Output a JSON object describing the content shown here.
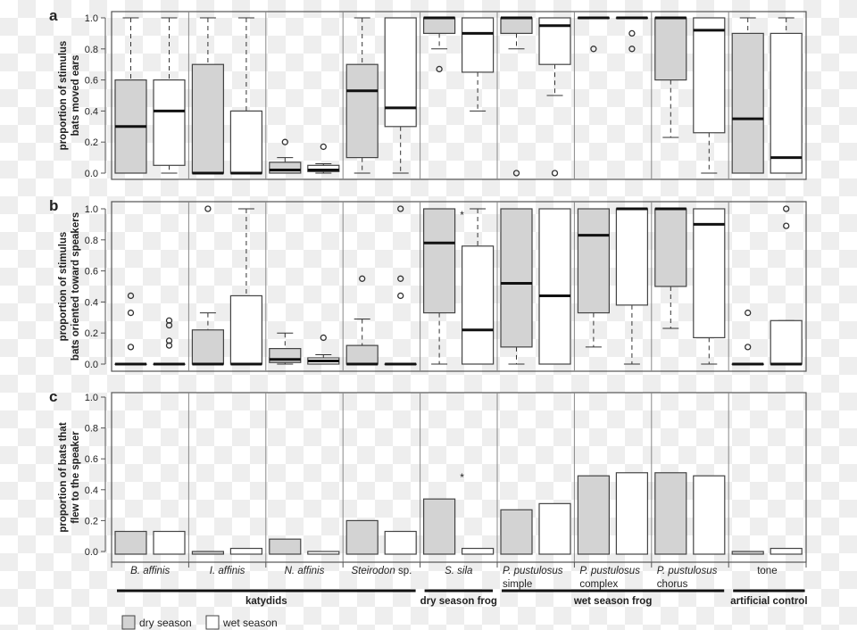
{
  "chart_data": [
    {
      "type": "box",
      "panel_label": "a",
      "ylabel": [
        "proportion of stimulus",
        "bats moved ears"
      ],
      "ylim": [
        0,
        1
      ],
      "yticks": [
        "0.0",
        "0.2",
        "0.4",
        "0.6",
        "0.8",
        "1.0"
      ],
      "groups": [
        {
          "dry": {
            "min": 0,
            "q1": 0,
            "med": 0.3,
            "q3": 0.6,
            "max": 1,
            "out": []
          },
          "wet": {
            "min": 0,
            "q1": 0.05,
            "med": 0.4,
            "q3": 0.6,
            "max": 1,
            "out": []
          }
        },
        {
          "dry": {
            "min": 0,
            "q1": 0,
            "med": 0,
            "q3": 0.7,
            "max": 1,
            "out": []
          },
          "wet": {
            "min": 0,
            "q1": 0,
            "med": 0,
            "q3": 0.4,
            "max": 1,
            "out": []
          }
        },
        {
          "dry": {
            "min": 0,
            "q1": 0,
            "med": 0.02,
            "q3": 0.07,
            "max": 0.1,
            "out": [
              0.2
            ]
          },
          "wet": {
            "min": 0,
            "q1": 0.01,
            "med": 0.02,
            "q3": 0.05,
            "max": 0.06,
            "out": [
              0.17
            ]
          }
        },
        {
          "dry": {
            "min": 0,
            "q1": 0.1,
            "med": 0.53,
            "q3": 0.7,
            "max": 1,
            "out": []
          },
          "wet": {
            "min": 0,
            "q1": 0.3,
            "med": 0.42,
            "q3": 1,
            "max": 1,
            "out": []
          }
        },
        {
          "dry": {
            "min": 0.8,
            "q1": 0.9,
            "med": 1,
            "q3": 1,
            "max": 1,
            "out": [
              0.67
            ]
          },
          "wet": {
            "min": 0.4,
            "q1": 0.65,
            "med": 0.9,
            "q3": 1,
            "max": 1,
            "out": []
          }
        },
        {
          "dry": {
            "min": 0.8,
            "q1": 0.9,
            "med": 1,
            "q3": 1,
            "max": 1,
            "out": [
              0
            ]
          },
          "wet": {
            "min": 0.5,
            "q1": 0.7,
            "med": 0.95,
            "q3": 1,
            "max": 1,
            "out": [
              0
            ]
          }
        },
        {
          "dry": {
            "min": 1,
            "q1": 1,
            "med": 1,
            "q3": 1,
            "max": 1,
            "out": [
              0.8
            ]
          },
          "wet": {
            "min": 1,
            "q1": 1,
            "med": 1,
            "q3": 1,
            "max": 1,
            "out": [
              0.9,
              0.8
            ]
          }
        },
        {
          "dry": {
            "min": 0.23,
            "q1": 0.6,
            "med": 1,
            "q3": 1,
            "max": 1,
            "out": []
          },
          "wet": {
            "min": 0,
            "q1": 0.26,
            "med": 0.92,
            "q3": 1,
            "max": 1,
            "out": []
          }
        },
        {
          "dry": {
            "min": 0,
            "q1": 0,
            "med": 0.35,
            "q3": 0.9,
            "max": 1,
            "out": []
          },
          "wet": {
            "min": 0,
            "q1": 0,
            "med": 0.1,
            "q3": 0.9,
            "max": 1,
            "out": []
          }
        }
      ],
      "annotations": []
    },
    {
      "type": "box",
      "panel_label": "b",
      "ylabel": [
        "proportion of stimulus",
        "bats oriented toward speakers"
      ],
      "ylim": [
        0,
        1
      ],
      "yticks": [
        "0.0",
        "0.2",
        "0.4",
        "0.6",
        "0.8",
        "1.0"
      ],
      "groups": [
        {
          "dry": {
            "min": 0,
            "q1": 0,
            "med": 0,
            "q3": 0,
            "max": 0,
            "out": [
              0.44,
              0.33,
              0.11
            ]
          },
          "wet": {
            "min": 0,
            "q1": 0,
            "med": 0,
            "q3": 0,
            "max": 0,
            "out": [
              0.28,
              0.25,
              0.15,
              0.12
            ]
          }
        },
        {
          "dry": {
            "min": 0,
            "q1": 0,
            "med": 0,
            "q3": 0.22,
            "max": 0.33,
            "out": [
              1
            ]
          },
          "wet": {
            "min": 0,
            "q1": 0,
            "med": 0,
            "q3": 0.44,
            "max": 1,
            "out": []
          }
        },
        {
          "dry": {
            "min": 0,
            "q1": 0.01,
            "med": 0.03,
            "q3": 0.1,
            "max": 0.2,
            "out": []
          },
          "wet": {
            "min": 0,
            "q1": 0,
            "med": 0.02,
            "q3": 0.04,
            "max": 0.06,
            "out": [
              0.17
            ]
          }
        },
        {
          "dry": {
            "min": 0,
            "q1": 0,
            "med": 0,
            "q3": 0.12,
            "max": 0.29,
            "out": [
              0.55
            ]
          },
          "wet": {
            "min": 0,
            "q1": 0,
            "med": 0,
            "q3": 0,
            "max": 0,
            "out": [
              1,
              0.55,
              0.44
            ]
          }
        },
        {
          "dry": {
            "min": 0,
            "q1": 0.33,
            "med": 0.78,
            "q3": 1,
            "max": 1,
            "out": []
          },
          "wet": {
            "min": 0,
            "q1": 0,
            "med": 0.22,
            "q3": 0.76,
            "max": 1,
            "out": []
          }
        },
        {
          "dry": {
            "min": 0,
            "q1": 0.11,
            "med": 0.52,
            "q3": 1,
            "max": 1,
            "out": []
          },
          "wet": {
            "min": 0,
            "q1": 0,
            "med": 0.44,
            "q3": 1,
            "max": 1,
            "out": []
          }
        },
        {
          "dry": {
            "min": 0.11,
            "q1": 0.33,
            "med": 0.83,
            "q3": 1,
            "max": 1,
            "out": []
          },
          "wet": {
            "min": 0,
            "q1": 0.38,
            "med": 1,
            "q3": 1,
            "max": 1,
            "out": []
          }
        },
        {
          "dry": {
            "min": 0.23,
            "q1": 0.5,
            "med": 1,
            "q3": 1,
            "max": 1,
            "out": []
          },
          "wet": {
            "min": 0,
            "q1": 0.17,
            "med": 0.9,
            "q3": 1,
            "max": 1,
            "out": []
          }
        },
        {
          "dry": {
            "min": 0,
            "q1": 0,
            "med": 0,
            "q3": 0,
            "max": 0,
            "out": [
              0.33,
              0.11
            ]
          },
          "wet": {
            "min": 0,
            "q1": 0,
            "med": 0,
            "q3": 0.28,
            "max": 0.28,
            "out": [
              1,
              0.89
            ]
          }
        }
      ],
      "annotations": [
        {
          "group": 4,
          "text": "*",
          "y": 0.96
        }
      ]
    },
    {
      "type": "bar",
      "panel_label": "c",
      "ylabel": [
        "proportion of bats that",
        "flew to the speaker"
      ],
      "ylim": [
        0,
        1
      ],
      "yticks": [
        "0.0",
        "0.2",
        "0.4",
        "0.6",
        "0.8",
        "1.0"
      ],
      "series": [
        {
          "name": "dry season",
          "values": [
            0.13,
            0,
            0.08,
            0.2,
            0.34,
            0.27,
            0.49,
            0.51,
            0
          ]
        },
        {
          "name": "wet season",
          "values": [
            0.13,
            0.02,
            0,
            0.13,
            0.02,
            0.31,
            0.51,
            0.49,
            0.02
          ]
        }
      ],
      "annotations": [
        {
          "group": 4,
          "text": "*",
          "y": 0.48
        }
      ]
    }
  ],
  "categories": [
    [
      "B. affinis"
    ],
    [
      "I. affinis"
    ],
    [
      "N. affinis"
    ],
    [
      "Steirodon sp."
    ],
    [
      "S. sila"
    ],
    [
      "P. pustulosus",
      "simple"
    ],
    [
      "P. pustulosus",
      "complex"
    ],
    [
      "P. pustulosus",
      "chorus"
    ],
    [
      "tone"
    ]
  ],
  "category_italic": [
    true,
    true,
    true,
    "partial",
    true,
    true,
    true,
    true,
    false
  ],
  "stimulus_classes": [
    {
      "label": "katydids",
      "from": 0,
      "to": 3
    },
    {
      "label": "dry season frog",
      "from": 4,
      "to": 4
    },
    {
      "label": "wet season frog",
      "from": 5,
      "to": 7
    },
    {
      "label": "artificial control",
      "from": 8,
      "to": 8
    }
  ],
  "legend": {
    "dry": "dry season",
    "wet": "wet season"
  },
  "colors": {
    "dry": "#d3d3d3",
    "wet": "#ffffff",
    "line": "#444444"
  }
}
